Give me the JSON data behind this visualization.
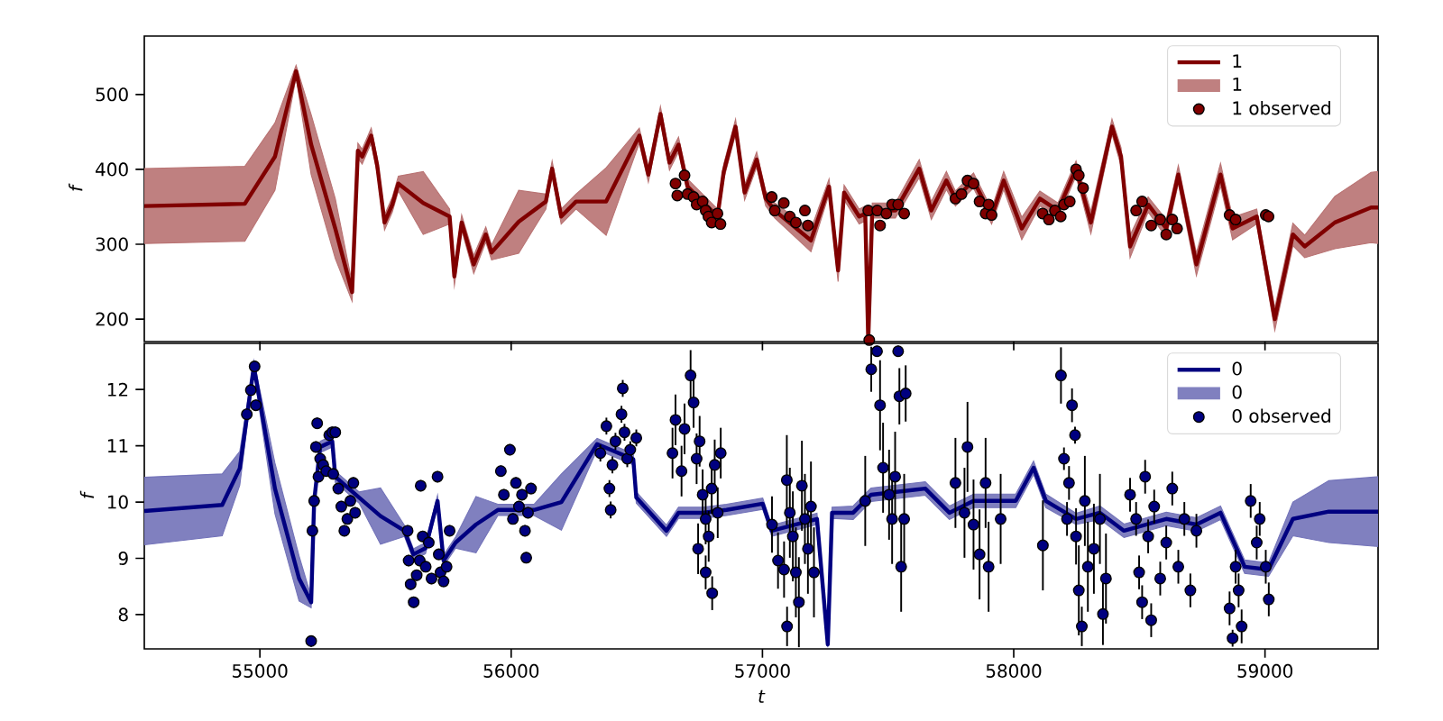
{
  "chart_data": [
    {
      "type": "line",
      "ylabel": "f",
      "xlim": [
        54540,
        59450
      ],
      "ylim": [
        170,
        578
      ],
      "xticks": [
        55000,
        56000,
        57000,
        58000,
        59000
      ],
      "yticks": [
        200,
        300,
        400,
        500
      ],
      "tick_labels": "y",
      "legend": "top right",
      "series": [
        {
          "type": "line",
          "name": "1",
          "color": "#800000",
          "x": [
            54540,
            54940,
            55060,
            55144,
            55204,
            55300,
            55367,
            55390,
            55407,
            55443,
            55467,
            55496,
            55527,
            55551,
            55650,
            55755,
            55774,
            55803,
            55851,
            55899,
            55922,
            56030,
            56138,
            56163,
            56199,
            56258,
            56378,
            56510,
            56546,
            56594,
            56630,
            56666,
            56702,
            56821,
            56846,
            56893,
            56929,
            56977,
            57013,
            57049,
            57193,
            57265,
            57301,
            57325,
            57385,
            57409,
            57421,
            57437,
            57529,
            57624,
            57672,
            57732,
            57768,
            57840,
            57912,
            57960,
            58032,
            58104,
            58176,
            58248,
            58307,
            58391,
            58427,
            58463,
            58535,
            58607,
            58655,
            58727,
            58823,
            58871,
            58967,
            59039,
            59111,
            59158,
            59278,
            59422,
            59450
          ],
          "values": [
            351,
            354,
            417,
            531,
            433,
            321,
            236,
            425,
            417,
            445,
            405,
            329,
            353,
            381,
            355,
            337,
            257,
            329,
            273,
            313,
            289,
            330,
            357,
            401,
            337,
            357,
            357,
            445,
            393,
            474,
            409,
            433,
            377,
            337,
            397,
            457,
            369,
            413,
            361,
            345,
            305,
            377,
            265,
            369,
            337,
            341,
            172,
            345,
            345,
            401,
            345,
            385,
            361,
            385,
            337,
            385,
            321,
            361,
            345,
            401,
            329,
            457,
            417,
            297,
            353,
            321,
            393,
            273,
            393,
            321,
            337,
            200,
            313,
            297,
            329,
            349,
            349
          ],
          "lower": [
            301,
            304,
            372,
            523,
            393,
            281,
            224,
            415,
            407,
            435,
            395,
            319,
            343,
            371,
            313,
            327,
            245,
            319,
            261,
            303,
            279,
            288,
            347,
            391,
            327,
            347,
            312,
            435,
            383,
            464,
            399,
            423,
            367,
            327,
            387,
            447,
            359,
            403,
            351,
            335,
            290,
            367,
            250,
            359,
            327,
            331,
            170,
            335,
            335,
            389,
            333,
            373,
            351,
            375,
            327,
            373,
            306,
            351,
            335,
            391,
            314,
            447,
            405,
            282,
            343,
            309,
            381,
            258,
            378,
            306,
            327,
            185,
            298,
            282,
            294,
            302,
            301
          ],
          "upper": [
            401,
            404,
            462,
            539,
            473,
            361,
            248,
            435,
            427,
            455,
            415,
            339,
            363,
            391,
            397,
            347,
            269,
            339,
            285,
            323,
            299,
            372,
            367,
            411,
            347,
            367,
            402,
            455,
            403,
            484,
            419,
            443,
            387,
            347,
            407,
            467,
            379,
            423,
            371,
            355,
            320,
            387,
            280,
            379,
            347,
            351,
            174,
            355,
            355,
            413,
            357,
            397,
            371,
            395,
            347,
            397,
            336,
            371,
            355,
            411,
            344,
            467,
            429,
            312,
            363,
            333,
            405,
            288,
            408,
            336,
            347,
            215,
            328,
            312,
            364,
            396,
            397
          ]
        },
        {
          "type": "scatter",
          "name": "1 observed",
          "color": "#800000",
          "marker": "circle",
          "x": [
            56654,
            56690,
            56661,
            56702,
            56726,
            56738,
            56762,
            56774,
            56785,
            56798,
            56821,
            56833,
            57037,
            57049,
            57085,
            57109,
            57133,
            57169,
            57181,
            57421,
            57425,
            57457,
            57468,
            57493,
            57516,
            57540,
            57564,
            57768,
            57792,
            57816,
            57840,
            57864,
            57888,
            57912,
            57900,
            58115,
            58140,
            58164,
            58187,
            58200,
            58223,
            58248,
            58259,
            58276,
            58487,
            58511,
            58547,
            58583,
            58607,
            58631,
            58650,
            58859,
            58883,
            59003,
            59014
          ],
          "values": [
            381,
            392,
            365,
            367,
            363,
            353,
            357,
            345,
            337,
            329,
            341,
            327,
            363,
            345,
            355,
            337,
            329,
            345,
            325,
            345,
            172,
            345,
            325,
            341,
            353,
            353,
            341,
            361,
            367,
            385,
            381,
            357,
            341,
            339,
            353,
            341,
            333,
            345,
            337,
            353,
            357,
            400,
            392,
            375,
            345,
            357,
            325,
            333,
            313,
            333,
            321,
            339,
            333,
            339,
            337
          ]
        }
      ]
    },
    {
      "type": "line",
      "xlabel": "t",
      "ylabel": "f",
      "xlim": [
        54540,
        59450
      ],
      "ylim": [
        7.39,
        12.82
      ],
      "xticks": [
        55000,
        56000,
        57000,
        58000,
        59000
      ],
      "yticks": [
        8,
        9,
        10,
        11,
        12
      ],
      "legend": "top right",
      "series": [
        {
          "type": "line",
          "name": "0",
          "color": "#000080",
          "x": [
            54540,
            54850,
            54920,
            54976,
            55060,
            55156,
            55204,
            55216,
            55240,
            55288,
            55300,
            55395,
            55480,
            55575,
            55611,
            55659,
            55707,
            55731,
            55779,
            55860,
            55947,
            56091,
            56200,
            56342,
            56486,
            56498,
            56618,
            56666,
            56762,
            56857,
            57001,
            57037,
            57217,
            57260,
            57277,
            57361,
            57432,
            57648,
            57744,
            57840,
            58008,
            58079,
            58128,
            58248,
            58343,
            58439,
            58607,
            58727,
            58823,
            58919,
            59014,
            59111,
            59254,
            59450
          ],
          "values": [
            9.84,
            9.95,
            10.6,
            12.41,
            10.24,
            8.64,
            8.22,
            10.02,
            10.98,
            11.08,
            10.45,
            10.08,
            9.75,
            9.49,
            9.07,
            9.18,
            10.02,
            8.96,
            9.28,
            9.6,
            9.86,
            9.86,
            10.0,
            11.03,
            10.76,
            10.08,
            9.49,
            9.81,
            9.81,
            9.86,
            9.97,
            9.49,
            9.7,
            7.47,
            9.81,
            9.81,
            10.13,
            10.24,
            9.81,
            10.02,
            10.02,
            10.61,
            10.02,
            9.7,
            9.81,
            9.49,
            9.7,
            9.6,
            9.81,
            8.85,
            8.8,
            9.7,
            9.83,
            9.83
          ],
          "lower": [
            9.24,
            9.4,
            10.3,
            12.31,
            9.79,
            8.24,
            8.12,
            9.92,
            10.88,
            10.98,
            10.35,
            9.98,
            9.25,
            9.39,
            8.97,
            9.08,
            9.92,
            8.86,
            9.18,
            9.1,
            9.76,
            9.76,
            9.5,
            10.93,
            10.66,
            9.98,
            9.39,
            9.71,
            9.71,
            9.76,
            9.87,
            9.39,
            9.6,
            7.42,
            9.71,
            9.69,
            10.01,
            10.12,
            9.69,
            9.9,
            9.9,
            10.49,
            9.9,
            9.6,
            9.69,
            9.37,
            9.58,
            9.48,
            9.69,
            8.73,
            8.68,
            9.4,
            9.28,
            9.21
          ],
          "upper": [
            10.44,
            10.5,
            10.9,
            12.51,
            10.69,
            9.04,
            8.32,
            10.12,
            11.08,
            11.18,
            10.55,
            10.18,
            10.25,
            9.59,
            9.17,
            9.28,
            10.12,
            9.06,
            9.38,
            10.1,
            9.96,
            9.96,
            10.5,
            11.13,
            10.86,
            10.18,
            9.59,
            9.91,
            9.91,
            9.96,
            10.07,
            9.59,
            9.8,
            7.52,
            9.91,
            9.93,
            10.25,
            10.36,
            9.93,
            10.14,
            10.14,
            10.73,
            10.14,
            9.8,
            9.93,
            9.61,
            9.82,
            9.72,
            9.93,
            8.97,
            8.92,
            10.0,
            10.38,
            10.45
          ]
        },
        {
          "type": "scatter",
          "name": "0 observed",
          "color": "#000080",
          "marker": "circle",
          "x": [
            54948,
            54964,
            54984,
            54979,
            55204,
            55209,
            55216,
            55223,
            55228,
            55233,
            55240,
            55252,
            55264,
            55276,
            55288,
            55300,
            55292,
            55312,
            55324,
            55336,
            55348,
            55360,
            55372,
            55379,
            55588,
            55592,
            55600,
            55612,
            55624,
            55636,
            55648,
            55660,
            55672,
            55683,
            55707,
            55712,
            55719,
            55731,
            55743,
            55755,
            55640,
            55959,
            55971,
            55995,
            56007,
            56019,
            56031,
            56043,
            56055,
            56060,
            56067,
            56079,
            56355,
            56379,
            56391,
            56403,
            56415,
            56439,
            56444,
            56451,
            56462,
            56474,
            56498,
            56396,
            56642,
            56654,
            56678,
            56690,
            56714,
            56726,
            56738,
            56750,
            56762,
            56774,
            56774,
            56786,
            56798,
            56810,
            56822,
            56834,
            56800,
            56744,
            57038,
            57062,
            57086,
            57098,
            57097,
            57109,
            57121,
            57133,
            57145,
            57157,
            57169,
            57181,
            57193,
            57205,
            57409,
            57433,
            57456,
            57468,
            57480,
            57504,
            57516,
            57528,
            57540,
            57552,
            57564,
            57545,
            57570,
            57768,
            57804,
            57816,
            57840,
            57864,
            57888,
            57900,
            57948,
            58116,
            58188,
            58200,
            58212,
            58220,
            58232,
            58244,
            58248,
            58259,
            58271,
            58283,
            58295,
            58319,
            58343,
            58355,
            58367,
            58463,
            58487,
            58499,
            58511,
            58523,
            58535,
            58547,
            58559,
            58583,
            58607,
            58631,
            58655,
            58679,
            58703,
            58727,
            58859,
            58871,
            58883,
            58895,
            58907,
            58943,
            58967,
            58979,
            59003,
            59015
          ],
          "values": [
            11.56,
            11.99,
            11.72,
            12.41,
            7.53,
            9.49,
            10.02,
            10.98,
            11.4,
            10.45,
            10.77,
            10.66,
            10.55,
            11.19,
            11.24,
            11.24,
            10.5,
            10.24,
            9.92,
            9.49,
            9.7,
            10.02,
            10.34,
            9.81,
            9.49,
            8.96,
            8.54,
            8.22,
            8.7,
            8.96,
            9.39,
            8.85,
            9.28,
            8.64,
            10.45,
            9.07,
            8.75,
            8.59,
            8.85,
            9.49,
            10.29,
            10.55,
            10.13,
            10.93,
            9.7,
            10.34,
            9.92,
            10.13,
            9.49,
            9.01,
            9.81,
            10.24,
            10.87,
            11.35,
            10.24,
            10.66,
            11.08,
            11.56,
            12.02,
            11.24,
            10.77,
            10.93,
            11.14,
            9.86,
            10.87,
            11.46,
            10.55,
            11.3,
            12.25,
            11.77,
            10.77,
            11.08,
            10.13,
            9.7,
            8.75,
            9.39,
            10.24,
            10.66,
            9.81,
            10.87,
            8.38,
            9.17,
            9.6,
            8.96,
            8.8,
            7.79,
            10.39,
            9.81,
            9.39,
            8.75,
            8.22,
            10.29,
            9.7,
            9.17,
            9.92,
            8.75,
            10.02,
            12.36,
            12.68,
            11.72,
            10.61,
            10.13,
            9.7,
            10.45,
            12.68,
            8.85,
            9.7,
            11.88,
            11.93,
            10.34,
            9.81,
            10.98,
            9.6,
            9.07,
            10.34,
            8.85,
            9.7,
            9.23,
            12.25,
            10.77,
            9.7,
            10.34,
            11.72,
            11.19,
            9.39,
            8.43,
            7.79,
            10.02,
            8.85,
            9.17,
            9.7,
            8.01,
            8.64,
            10.13,
            9.7,
            8.75,
            8.22,
            10.45,
            9.39,
            7.9,
            9.92,
            8.64,
            9.28,
            10.24,
            8.85,
            9.7,
            8.43,
            9.49,
            8.11,
            7.58,
            8.85,
            8.43,
            7.79,
            10.02,
            9.28,
            9.7,
            8.85,
            8.27
          ],
          "errors": [
            0.1,
            0.1,
            0.1,
            0.1,
            0.1,
            0.1,
            0.1,
            0.1,
            0.1,
            0.1,
            0.1,
            0.1,
            0.1,
            0.1,
            0.1,
            0.1,
            0.1,
            0.1,
            0.1,
            0.1,
            0.1,
            0.1,
            0.1,
            0.1,
            0.1,
            0.1,
            0.1,
            0.1,
            0.1,
            0.1,
            0.1,
            0.1,
            0.1,
            0.1,
            0.1,
            0.1,
            0.1,
            0.1,
            0.1,
            0.1,
            0.1,
            0.1,
            0.1,
            0.1,
            0.1,
            0.1,
            0.1,
            0.1,
            0.1,
            0.1,
            0.1,
            0.1,
            0.15,
            0.15,
            0.15,
            0.15,
            0.15,
            0.15,
            0.15,
            0.15,
            0.15,
            0.15,
            0.15,
            0.15,
            0.45,
            0.45,
            0.45,
            0.45,
            0.45,
            0.45,
            0.45,
            0.45,
            0.45,
            0.45,
            0.3,
            0.45,
            0.45,
            0.45,
            0.45,
            0.45,
            0.3,
            0.45,
            0.5,
            0.5,
            0.5,
            0.35,
            0.8,
            0.8,
            0.8,
            0.8,
            0.8,
            0.8,
            0.8,
            0.8,
            0.8,
            0.8,
            0.8,
            0.4,
            0.1,
            0.8,
            0.8,
            0.8,
            0.8,
            0.8,
            0.1,
            0.8,
            0.8,
            0.5,
            0.5,
            0.8,
            0.8,
            0.8,
            0.8,
            0.8,
            0.8,
            0.8,
            0.8,
            0.8,
            0.5,
            0.2,
            0.3,
            0.3,
            0.3,
            0.15,
            0.5,
            0.8,
            0.35,
            0.8,
            0.8,
            0.8,
            0.8,
            0.55,
            0.8,
            0.3,
            0.3,
            0.3,
            0.3,
            0.3,
            0.3,
            0.3,
            0.3,
            0.3,
            0.3,
            0.3,
            0.3,
            0.3,
            0.3,
            0.3,
            0.3,
            0.15,
            0.3,
            0.3,
            0.3,
            0.3,
            0.3,
            0.3,
            0.3,
            0.3
          ]
        }
      ]
    }
  ]
}
